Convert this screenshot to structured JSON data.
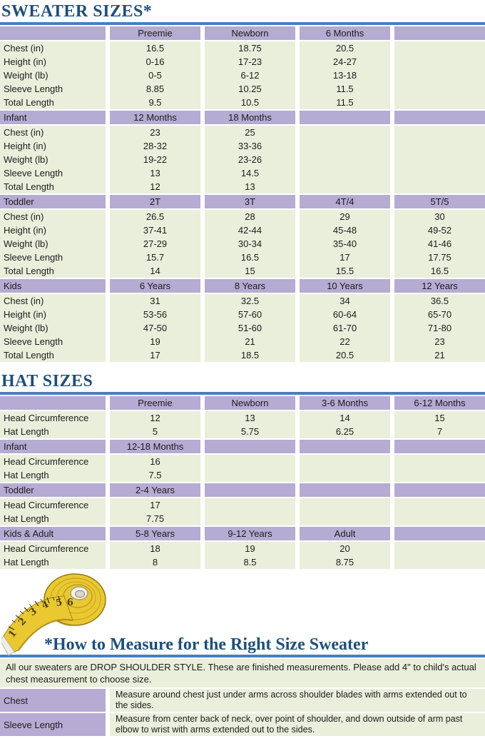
{
  "colors": {
    "purple": "#b6abd3",
    "green": "#eaefdc",
    "title_blue": "#1f4e79",
    "rule_blue": "#4a7ebb",
    "text": "#1c1c1c",
    "tape_yellow": "#e9c832"
  },
  "sweater": {
    "title": "SWEATER SIZES*",
    "sections": [
      {
        "header": [
          "",
          "Preemie",
          "Newborn",
          "6 Months",
          ""
        ],
        "rows": [
          {
            "label": "Chest (in)",
            "values": [
              "16.5",
              "18.75",
              "20.5",
              ""
            ]
          },
          {
            "label": "Height (in)",
            "values": [
              "0-16",
              "17-23",
              "24-27",
              ""
            ]
          },
          {
            "label": "Weight (lb)",
            "values": [
              "0-5",
              "6-12",
              "13-18",
              ""
            ]
          },
          {
            "label": "Sleeve Length",
            "values": [
              "8.85",
              "10.25",
              "11.5",
              ""
            ]
          },
          {
            "label": "Total Length",
            "values": [
              "9.5",
              "10.5",
              "11.5",
              ""
            ]
          }
        ]
      },
      {
        "header": [
          "Infant",
          "12 Months",
          "18 Months",
          "",
          ""
        ],
        "rows": [
          {
            "label": "Chest (in)",
            "values": [
              "23",
              "25",
              "",
              ""
            ]
          },
          {
            "label": "Height (in)",
            "values": [
              "28-32",
              "33-36",
              "",
              ""
            ]
          },
          {
            "label": "Weight (lb)",
            "values": [
              "19-22",
              "23-26",
              "",
              ""
            ]
          },
          {
            "label": "Sleeve Length",
            "values": [
              "13",
              "14.5",
              "",
              ""
            ]
          },
          {
            "label": "Total Length",
            "values": [
              "12",
              "13",
              "",
              ""
            ]
          }
        ]
      },
      {
        "header": [
          "Toddler",
          "2T",
          "3T",
          "4T/4",
          "5T/5"
        ],
        "rows": [
          {
            "label": "Chest (in)",
            "values": [
              "26.5",
              "28",
              "29",
              "30"
            ]
          },
          {
            "label": "Height (in)",
            "values": [
              "37-41",
              "42-44",
              "45-48",
              "49-52"
            ]
          },
          {
            "label": "Weight (lb)",
            "values": [
              "27-29",
              "30-34",
              "35-40",
              "41-46"
            ]
          },
          {
            "label": "Sleeve Length",
            "values": [
              "15.7",
              "16.5",
              "17",
              "17.75"
            ]
          },
          {
            "label": "Total Length",
            "values": [
              "14",
              "15",
              "15.5",
              "16.5"
            ]
          }
        ]
      },
      {
        "header": [
          "Kids",
          "6 Years",
          "8 Years",
          "10 Years",
          "12 Years"
        ],
        "rows": [
          {
            "label": "Chest (in)",
            "values": [
              "31",
              "32.5",
              "34",
              "36.5"
            ]
          },
          {
            "label": "Height (in)",
            "values": [
              "53-56",
              "57-60",
              "60-64",
              "65-70"
            ]
          },
          {
            "label": "Weight (lb)",
            "values": [
              "47-50",
              "51-60",
              "61-70",
              "71-80"
            ]
          },
          {
            "label": "Sleeve Length",
            "values": [
              "19",
              "21",
              "22",
              "23"
            ]
          },
          {
            "label": "Total Length",
            "values": [
              "17",
              "18.5",
              "20.5",
              "21"
            ]
          }
        ]
      }
    ]
  },
  "hat": {
    "title": "HAT SIZES",
    "sections": [
      {
        "header": [
          "",
          "Preemie",
          "Newborn",
          "3-6 Months",
          "6-12 Months"
        ],
        "rows": [
          {
            "label": "Head Circumference",
            "values": [
              "12",
              "13",
              "14",
              "15"
            ]
          },
          {
            "label": "Hat Length",
            "values": [
              "5",
              "5.75",
              "6.25",
              "7"
            ]
          }
        ]
      },
      {
        "header": [
          "Infant",
          "12-18 Months",
          "",
          "",
          ""
        ],
        "rows": [
          {
            "label": "Head Circumference",
            "values": [
              "16",
              "",
              "",
              ""
            ]
          },
          {
            "label": "Hat Length",
            "values": [
              "7.5",
              "",
              "",
              ""
            ]
          }
        ]
      },
      {
        "header": [
          "Toddler",
          "2-4 Years",
          "",
          "",
          ""
        ],
        "rows": [
          {
            "label": "Head Circumference",
            "values": [
              "17",
              "",
              "",
              ""
            ]
          },
          {
            "label": "Hat Length",
            "values": [
              "7.75",
              "",
              "",
              ""
            ]
          }
        ]
      },
      {
        "header": [
          "Kids & Adult",
          "5-8 Years",
          "9-12 Years",
          "Adult",
          ""
        ],
        "rows": [
          {
            "label": "Head Circumference",
            "values": [
              "18",
              "19",
              "20",
              ""
            ]
          },
          {
            "label": "Hat Length",
            "values": [
              "8",
              "8.5",
              "8.75",
              ""
            ]
          }
        ]
      }
    ]
  },
  "measure": {
    "title": "*How to Measure for the Right Size Sweater",
    "intro": "All our sweaters are DROP SHOULDER STYLE.  These are finished measurements.  Please add 4\" to child's actual chest measurement to choose size.",
    "tape_numbers": [
      "1",
      "2",
      "3",
      "4",
      "5",
      "6"
    ],
    "rows": [
      {
        "label": "Chest",
        "text": "Measure around chest just under arms across shoulder blades with arms extended out to the sides."
      },
      {
        "label": "Sleeve Length",
        "text": "Measure from center back of neck, over point of shoulder, and down outside of arm past elbow to wrist with arms extended out to the sides."
      }
    ]
  }
}
